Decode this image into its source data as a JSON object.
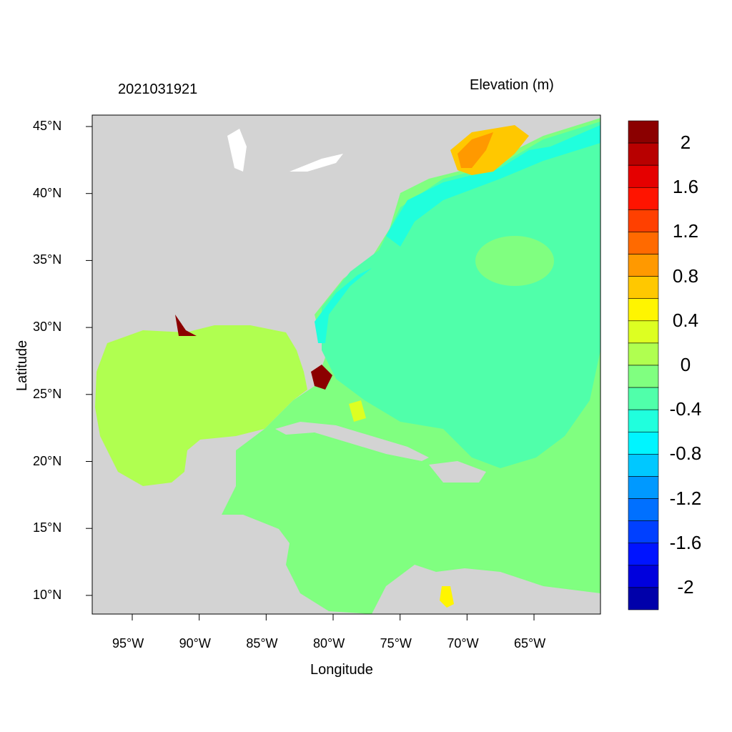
{
  "title_left": "2021031921",
  "title_right": "Elevation (m)",
  "xlabel": "Longitude",
  "ylabel": "Latitude",
  "x_ticks": [
    "95°W",
    "90°W",
    "85°W",
    "80°W",
    "75°W",
    "70°W",
    "65°W"
  ],
  "y_ticks": [
    "45°N",
    "40°N",
    "35°N",
    "30°N",
    "25°N",
    "20°N",
    "15°N",
    "10°N"
  ],
  "map_extent": {
    "lon": [
      -98,
      -60
    ],
    "lat": [
      8.6,
      45.85
    ]
  },
  "colorbar": {
    "labels": [
      "2",
      "1.6",
      "1.2",
      "0.8",
      "0.4",
      "0",
      "-0.4",
      "-0.8",
      "-1.2",
      "-1.6",
      "-2"
    ],
    "colors": [
      "#8b0000",
      "#b80000",
      "#e50000",
      "#ff1400",
      "#ff4000",
      "#ff6a00",
      "#ff9900",
      "#ffc800",
      "#fff500",
      "#ddff22",
      "#b0ff50",
      "#80ff80",
      "#50ffaa",
      "#20ffdd",
      "#00f5ff",
      "#00c8ff",
      "#0099ff",
      "#0070ff",
      "#0040ff",
      "#0014ff",
      "#0000dd",
      "#0000aa"
    ]
  },
  "colors": {
    "land": "#d3d3d3",
    "lakes": "#ffffff"
  }
}
